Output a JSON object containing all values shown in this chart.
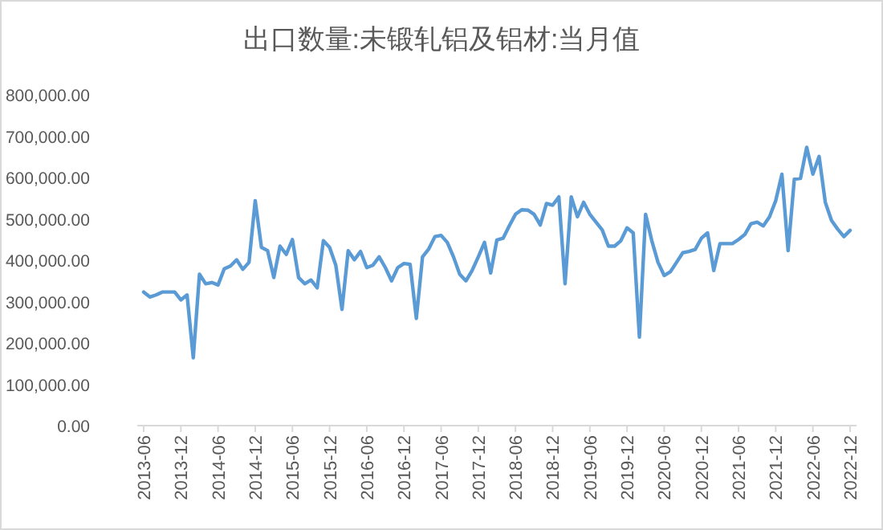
{
  "chart_data": {
    "type": "line",
    "title": "出口数量:未锻轧铝及铝材:当月值",
    "categories": [
      "2013-06",
      null,
      null,
      null,
      null,
      null,
      "2013-12",
      null,
      null,
      null,
      null,
      null,
      "2014-06",
      null,
      null,
      null,
      null,
      null,
      "2014-12",
      null,
      null,
      null,
      null,
      null,
      "2015-06",
      null,
      null,
      null,
      null,
      null,
      "2015-12",
      null,
      null,
      null,
      null,
      null,
      "2016-06",
      null,
      null,
      null,
      null,
      null,
      "2016-12",
      null,
      null,
      null,
      null,
      null,
      "2017-06",
      null,
      null,
      null,
      null,
      null,
      "2017-12",
      null,
      null,
      null,
      null,
      null,
      "2018-06",
      null,
      null,
      null,
      null,
      null,
      "2018-12",
      null,
      null,
      null,
      null,
      null,
      "2019-06",
      null,
      null,
      null,
      null,
      null,
      "2019-12",
      null,
      null,
      null,
      null,
      null,
      "2020-06",
      null,
      null,
      null,
      null,
      null,
      "2020-12",
      null,
      null,
      null,
      null,
      null,
      "2021-06",
      null,
      null,
      null,
      null,
      null,
      "2021-12",
      null,
      null,
      null,
      null,
      null,
      "2022-06",
      null,
      null,
      null,
      null,
      null,
      "2022-12"
    ],
    "series": [
      {
        "color": "#5b9bd5",
        "values": [
          323000,
          311000,
          316000,
          323000,
          323000,
          323000,
          304000,
          316000,
          164000,
          366000,
          343000,
          346000,
          340000,
          379000,
          386000,
          401000,
          378000,
          395000,
          544000,
          431000,
          423000,
          358000,
          434000,
          414000,
          450000,
          358000,
          343000,
          352000,
          333000,
          447000,
          431000,
          388000,
          281000,
          423000,
          401000,
          421000,
          382000,
          388000,
          408000,
          382000,
          350000,
          382000,
          392000,
          390000,
          259000,
          408000,
          427000,
          457000,
          460000,
          443000,
          408000,
          366000,
          350000,
          375000,
          408000,
          443000,
          369000,
          449000,
          453000,
          483000,
          511000,
          522000,
          521000,
          511000,
          485000,
          537000,
          533000,
          553000,
          343000,
          553000,
          505000,
          540000,
          511000,
          492000,
          473000,
          434000,
          434000,
          447000,
          478000,
          466000,
          214000,
          511000,
          447000,
          395000,
          363000,
          372000,
          395000,
          418000,
          421000,
          426000,
          453000,
          466000,
          375000,
          440000,
          440000,
          440000,
          450000,
          462000,
          488000,
          492000,
          483000,
          505000,
          544000,
          608000,
          423000,
          596000,
          598000,
          673000,
          608000,
          651000,
          540000,
          496000,
          475000,
          457000,
          472000
        ]
      }
    ],
    "ylim": [
      0,
      800000
    ],
    "yticks": [
      {
        "value": 0,
        "label": "0.00"
      },
      {
        "value": 100000,
        "label": "100,000.00"
      },
      {
        "value": 200000,
        "label": "200,000.00"
      },
      {
        "value": 300000,
        "label": "300,000.00"
      },
      {
        "value": 400000,
        "label": "400,000.00"
      },
      {
        "value": 500000,
        "label": "500,000.00"
      },
      {
        "value": 600000,
        "label": "600,000.00"
      },
      {
        "value": 700000,
        "label": "700,000.00"
      },
      {
        "value": 800000,
        "label": "800,000.00"
      }
    ],
    "grid": false,
    "marker": "none",
    "line_style": "solid"
  }
}
